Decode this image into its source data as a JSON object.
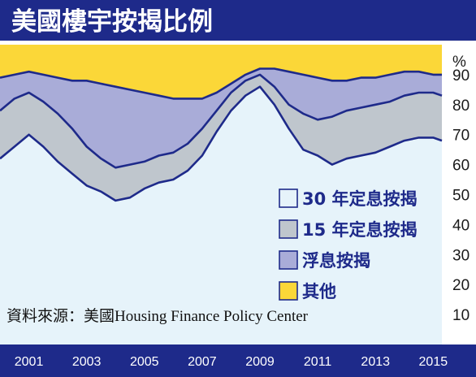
{
  "title": "美國樓宇按揭比例",
  "source": "資料來源：美國Housing Finance Policy Center",
  "chart_data": {
    "type": "area",
    "stacked": true,
    "unit": "%",
    "ylim": [
      0,
      100
    ],
    "y_ticks": [
      "10",
      "20",
      "30",
      "40",
      "50",
      "60",
      "70",
      "80",
      "90"
    ],
    "y_tick_values": [
      10,
      20,
      30,
      40,
      50,
      60,
      70,
      80,
      90
    ],
    "x_range": [
      2000.0,
      2015.3
    ],
    "x_tick_labels": [
      "2001",
      "2003",
      "2005",
      "2007",
      "2009",
      "2011",
      "2013",
      "2015"
    ],
    "x_tick_values": [
      2001,
      2003,
      2005,
      2007,
      2009,
      2011,
      2013,
      2015
    ],
    "colors": {
      "fixed_30": "#e6f3fa",
      "fixed_15": "#bfc6cd",
      "arm": "#a9acd8",
      "other": "#fbd738",
      "navy": "#1e2a8a"
    },
    "legend": [
      {
        "label": "30 年定息按揭",
        "key": "fixed_30"
      },
      {
        "label": "15 年定息按揭",
        "key": "fixed_15"
      },
      {
        "label": "浮息按揭",
        "key": "arm"
      },
      {
        "label": "其他",
        "key": "other"
      }
    ],
    "x": [
      2000.0,
      2000.5,
      2001.0,
      2001.5,
      2002.0,
      2002.5,
      2003.0,
      2003.5,
      2004.0,
      2004.5,
      2005.0,
      2005.5,
      2006.0,
      2006.5,
      2007.0,
      2007.5,
      2008.0,
      2008.5,
      2009.0,
      2009.5,
      2010.0,
      2010.5,
      2011.0,
      2011.5,
      2012.0,
      2012.5,
      2013.0,
      2013.5,
      2014.0,
      2014.5,
      2015.0,
      2015.3
    ],
    "cumulative_series": [
      {
        "name": "30 年定息按揭",
        "key": "fixed_30",
        "values": [
          62,
          66,
          70,
          66,
          61,
          57,
          53,
          51,
          48,
          49,
          52,
          54,
          55,
          58,
          63,
          71,
          78,
          83,
          86,
          80,
          72,
          65,
          63,
          60,
          62,
          63,
          64,
          66,
          68,
          69,
          69,
          68
        ]
      },
      {
        "name": "15 年定息按揭",
        "key": "fixed_15",
        "values": [
          78,
          82,
          84,
          81,
          77,
          72,
          66,
          62,
          59,
          60,
          61,
          63,
          64,
          67,
          72,
          78,
          84,
          88,
          90,
          86,
          80,
          77,
          75,
          76,
          78,
          79,
          80,
          81,
          83,
          84,
          84,
          83
        ]
      },
      {
        "name": "浮息按揭",
        "key": "arm",
        "values": [
          89,
          90,
          91,
          90,
          89,
          88,
          88,
          87,
          86,
          85,
          84,
          83,
          82,
          82,
          82,
          84,
          87,
          90,
          92,
          92,
          91,
          90,
          89,
          88,
          88,
          89,
          89,
          90,
          91,
          91,
          90,
          90
        ]
      },
      {
        "name": "其他",
        "key": "other",
        "values": [
          100,
          100,
          100,
          100,
          100,
          100,
          100,
          100,
          100,
          100,
          100,
          100,
          100,
          100,
          100,
          100,
          100,
          100,
          100,
          100,
          100,
          100,
          100,
          100,
          100,
          100,
          100,
          100,
          100,
          100,
          100,
          100
        ]
      }
    ]
  }
}
